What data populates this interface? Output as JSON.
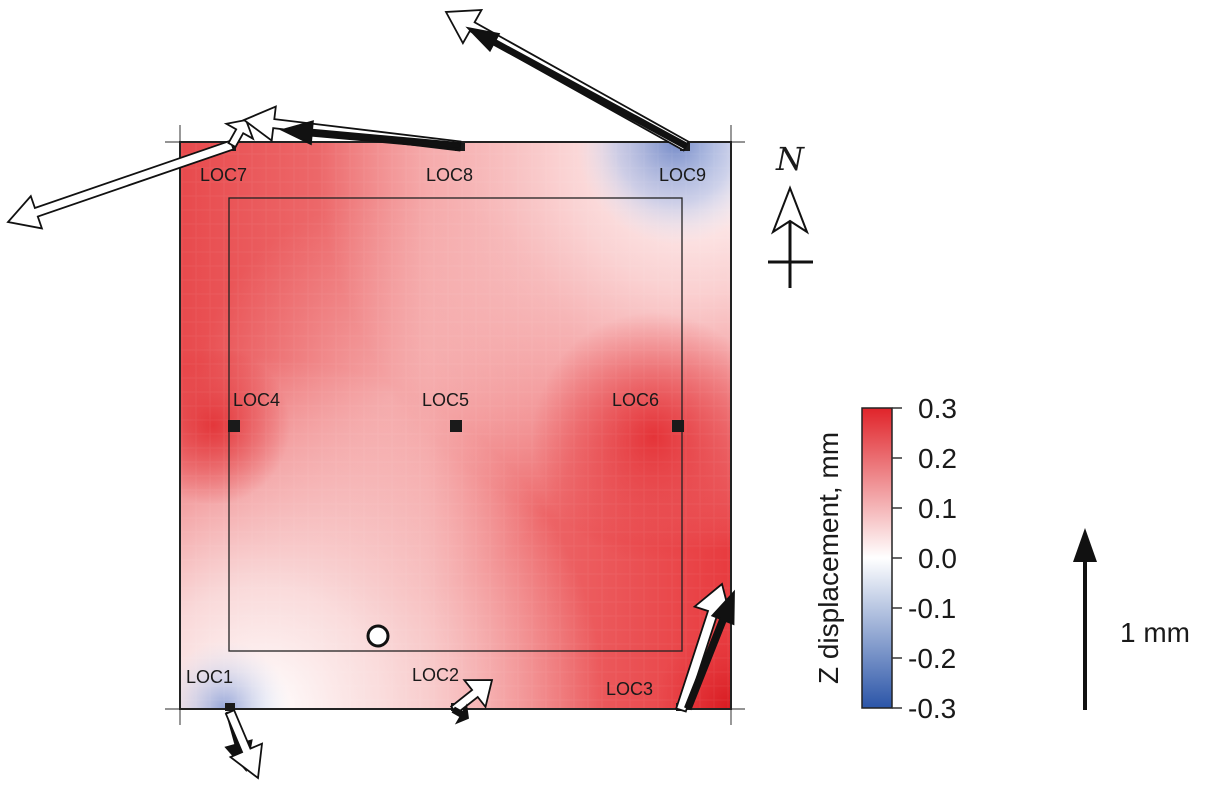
{
  "locations": [
    {
      "id": "loc1",
      "label": "LOC1"
    },
    {
      "id": "loc2",
      "label": "LOC2"
    },
    {
      "id": "loc3",
      "label": "LOC3"
    },
    {
      "id": "loc4",
      "label": "LOC4"
    },
    {
      "id": "loc5",
      "label": "LOC5"
    },
    {
      "id": "loc6",
      "label": "LOC6"
    },
    {
      "id": "loc7",
      "label": "LOC7"
    },
    {
      "id": "loc8",
      "label": "LOC8"
    },
    {
      "id": "loc9",
      "label": "LOC9"
    }
  ],
  "colorbar": {
    "title": "Z displacement, mm",
    "ticks": [
      "0.3",
      "0.2",
      "0.1",
      "0.0",
      "-0.1",
      "-0.2",
      "-0.3"
    ],
    "colors": {
      "max": "#e0242a",
      "zero": "#ffffff",
      "min": "#2b55a8"
    }
  },
  "north": {
    "label": "N"
  },
  "scale": {
    "label": "1 mm"
  }
}
